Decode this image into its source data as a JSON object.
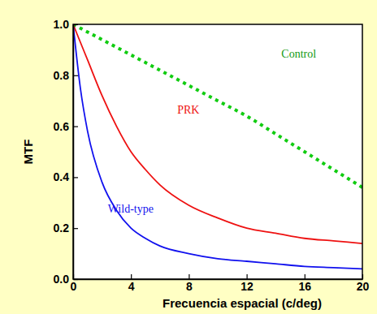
{
  "chart_data": {
    "type": "line",
    "x_label": "Frecuencia espacial (c/deg)",
    "y_label": "MTF",
    "x": [
      0,
      0.5,
      1,
      2,
      3,
      4,
      5,
      6,
      8,
      10,
      12,
      14,
      16,
      18,
      20
    ],
    "series": [
      {
        "name": "Control",
        "color": "#11cc11",
        "line_style": "dotted",
        "values": [
          1.0,
          0.985,
          0.97,
          0.94,
          0.91,
          0.88,
          0.85,
          0.82,
          0.76,
          0.7,
          0.64,
          0.57,
          0.5,
          0.43,
          0.36
        ]
      },
      {
        "name": "PRK",
        "color": "#ee1111",
        "line_style": "solid",
        "values": [
          1.0,
          0.93,
          0.86,
          0.72,
          0.6,
          0.5,
          0.43,
          0.37,
          0.29,
          0.24,
          0.2,
          0.18,
          0.16,
          0.15,
          0.14
        ]
      },
      {
        "name": "Wild-type",
        "color": "#1111ee",
        "line_style": "solid",
        "values": [
          1.0,
          0.75,
          0.58,
          0.38,
          0.27,
          0.2,
          0.16,
          0.13,
          0.1,
          0.08,
          0.07,
          0.06,
          0.05,
          0.045,
          0.04
        ]
      }
    ],
    "xlim": [
      0,
      20
    ],
    "xticks": [
      0,
      4,
      8,
      12,
      16,
      20
    ],
    "ylim": [
      0,
      1
    ],
    "yticks": [
      {
        "value": 0,
        "label": "0.0"
      },
      {
        "value": 0.2,
        "label": "0.2"
      },
      {
        "value": 0.4,
        "label": "0.4"
      },
      {
        "value": 0.6,
        "label": "0.6"
      },
      {
        "value": 0.8,
        "label": "0.8"
      },
      {
        "value": 1,
        "label": "1.0"
      }
    ]
  }
}
